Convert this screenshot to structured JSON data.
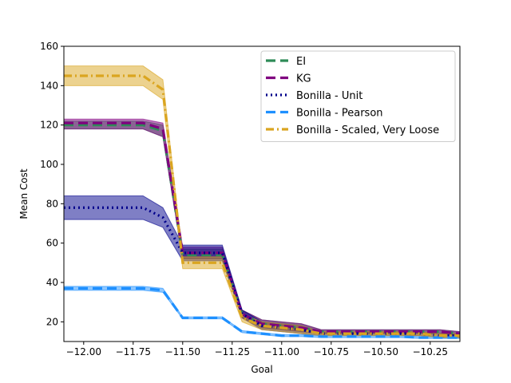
{
  "chart_data": {
    "type": "line",
    "title": "",
    "xlabel": "Goal",
    "ylabel": "Mean Cost",
    "xlim": [
      -12.1,
      -10.1
    ],
    "ylim": [
      10,
      160
    ],
    "x_ticks": [
      -12.0,
      -11.75,
      -11.5,
      -11.25,
      -11.0,
      -10.75,
      -10.5,
      -10.25
    ],
    "x_tick_labels": [
      "−12.00",
      "−11.75",
      "−11.50",
      "−11.25",
      "−11.00",
      "−10.75",
      "−10.50",
      "−10.25"
    ],
    "y_ticks": [
      20,
      40,
      60,
      80,
      100,
      120,
      140,
      160
    ],
    "y_tick_labels": [
      "20",
      "40",
      "60",
      "80",
      "100",
      "120",
      "140",
      "160"
    ],
    "grid": false,
    "legend_position": "top-right",
    "x": [
      -12.1,
      -12.0,
      -11.9,
      -11.8,
      -11.7,
      -11.6,
      -11.5,
      -11.4,
      -11.3,
      -11.2,
      -11.1,
      -11.0,
      -10.9,
      -10.8,
      -10.7,
      -10.6,
      -10.5,
      -10.4,
      -10.3,
      -10.2,
      -10.1
    ],
    "series": [
      {
        "name": "EI",
        "color": "#2e8b57",
        "style": "dashed",
        "values": [
          120,
          120,
          120,
          120,
          120,
          117,
          54,
          54,
          54,
          24,
          19,
          18,
          17,
          15,
          15,
          15,
          15,
          15,
          15,
          15,
          14
        ],
        "lower": [
          118,
          118,
          118,
          118,
          118,
          114,
          52,
          52,
          52,
          22,
          17,
          16,
          15,
          14,
          14,
          14,
          14,
          14,
          14,
          14,
          13
        ],
        "upper": [
          122,
          122,
          122,
          122,
          122,
          120,
          57,
          57,
          57,
          26,
          21,
          20,
          19,
          16,
          16,
          16,
          16,
          16,
          16,
          16,
          15
        ]
      },
      {
        "name": "KG",
        "color": "#800080",
        "style": "dashed",
        "values": [
          121,
          121,
          121,
          121,
          121,
          118,
          55,
          55,
          55,
          24,
          19,
          18,
          17,
          15,
          15,
          15,
          15,
          15,
          15,
          15,
          14
        ],
        "lower": [
          118,
          118,
          118,
          118,
          118,
          114,
          52,
          52,
          52,
          22,
          17,
          16,
          15,
          14,
          14,
          14,
          14,
          14,
          14,
          14,
          13
        ],
        "upper": [
          123,
          123,
          123,
          123,
          123,
          121,
          58,
          58,
          58,
          26,
          21,
          20,
          19,
          16,
          16,
          16,
          16,
          16,
          16,
          16,
          15
        ]
      },
      {
        "name": "Bonilla - Unit",
        "color": "#00008b",
        "style": "dotted",
        "values": [
          78,
          78,
          78,
          78,
          78,
          73,
          55,
          55,
          55,
          24,
          18,
          17,
          16,
          14,
          14,
          14,
          14,
          14,
          14,
          13,
          13
        ],
        "lower": [
          72,
          72,
          72,
          72,
          72,
          68,
          51,
          51,
          51,
          22,
          16,
          15,
          14,
          13,
          13,
          13,
          13,
          13,
          13,
          12,
          12
        ],
        "upper": [
          84,
          84,
          84,
          84,
          84,
          78,
          59,
          59,
          59,
          26,
          20,
          19,
          18,
          15,
          15,
          15,
          15,
          15,
          15,
          14,
          14
        ]
      },
      {
        "name": "Bonilla - Pearson",
        "color": "#1e90ff",
        "style": "dashed",
        "values": [
          37,
          37,
          37,
          37,
          37,
          36,
          22,
          22,
          22,
          15,
          14,
          13,
          13,
          12.5,
          12.5,
          12.5,
          12.5,
          12.5,
          12,
          12,
          12
        ],
        "lower": [
          36,
          36,
          36,
          36,
          36,
          35,
          21.5,
          21.5,
          21.5,
          14.5,
          13.5,
          12.5,
          12.5,
          12,
          12,
          12,
          12,
          12,
          11.5,
          11.5,
          11.5
        ],
        "upper": [
          38,
          38,
          38,
          38,
          38,
          37,
          22.5,
          22.5,
          22.5,
          15.5,
          14.5,
          13.5,
          13.5,
          13,
          13,
          13,
          13,
          13,
          12.5,
          12.5,
          12.5
        ]
      },
      {
        "name": "Bonilla - Scaled, Very Loose",
        "color": "#daa520",
        "style": "dashdot",
        "values": [
          145,
          145,
          145,
          145,
          145,
          138,
          50,
          50,
          50,
          22,
          18,
          17,
          16,
          14,
          14,
          14,
          14,
          14,
          14,
          13,
          13
        ],
        "lower": [
          140,
          140,
          140,
          140,
          140,
          133,
          47,
          47,
          47,
          20,
          16,
          15,
          14,
          13,
          13,
          13,
          13,
          13,
          13,
          12,
          12
        ],
        "upper": [
          150,
          150,
          150,
          150,
          150,
          143,
          53,
          53,
          53,
          24,
          20,
          19,
          18,
          15,
          15,
          15,
          15,
          15,
          15,
          14,
          14
        ]
      }
    ]
  }
}
